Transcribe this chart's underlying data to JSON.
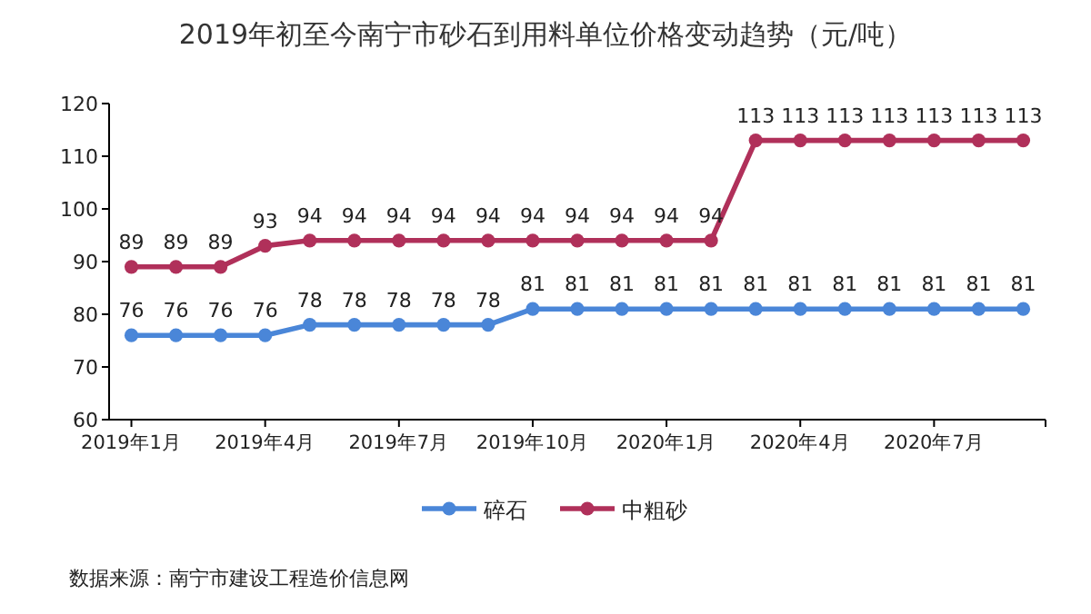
{
  "chart_data": {
    "type": "line",
    "title": "2019年初至今南宁市砂石到用料单位价格变动趋势（元/吨）",
    "categories": [
      "2019年1月",
      null,
      null,
      "2019年4月",
      null,
      null,
      "2019年7月",
      null,
      null,
      "2019年10月",
      null,
      null,
      "2020年1月",
      null,
      null,
      "2020年4月",
      null,
      null,
      "2020年7月",
      null,
      null
    ],
    "series": [
      {
        "name": "碎石",
        "color": "#4a86d8",
        "values": [
          76,
          76,
          76,
          76,
          78,
          78,
          78,
          78,
          78,
          81,
          81,
          81,
          81,
          81,
          81,
          81,
          81,
          81,
          81,
          81,
          81
        ]
      },
      {
        "name": "中粗砂",
        "color": "#b0305a",
        "values": [
          89,
          89,
          89,
          93,
          94,
          94,
          94,
          94,
          94,
          94,
          94,
          94,
          94,
          94,
          113,
          113,
          113,
          113,
          113,
          113,
          113
        ]
      }
    ],
    "ylim": [
      60,
      120
    ],
    "yticks": [
      60,
      70,
      80,
      90,
      100,
      110,
      120
    ],
    "data_labels": true,
    "marker": "circle",
    "grid": false,
    "legend": "bottom",
    "annotations": [
      "数据来源：南宁市建设工程造价信息网"
    ]
  }
}
